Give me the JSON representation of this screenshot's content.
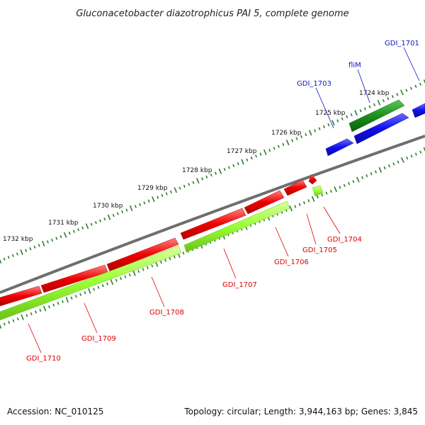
{
  "title": "Gluconacetobacter diazotrophicus PAI 5, complete genome",
  "footer": {
    "accession": "Accession: NC_010125",
    "summary": "Topology: circular; Length: 3,944,163 bp; Genes: 3,845"
  },
  "colors": {
    "backbone": "#808080",
    "ticks": "#2e7d2e",
    "forward_gene": "#1a9a1a",
    "forward_protein": "#1010ee",
    "reverse_gene": "#f00000",
    "reverse_protein": "#99ff33",
    "forward_label": "#1010cc",
    "reverse_label": "#dd0000"
  },
  "scale": {
    "unit": "kbp",
    "labels": [
      "1724 kbp",
      "1725 kbp",
      "1726 kbp",
      "1727 kbp",
      "1728 kbp",
      "1729 kbp",
      "1730 kbp",
      "1731 kbp",
      "1732 kbp"
    ]
  },
  "genes": [
    {
      "name": "GDI_1701",
      "strand": "forward"
    },
    {
      "name": "fliM",
      "strand": "forward"
    },
    {
      "name": "GDI_1703",
      "strand": "forward"
    },
    {
      "name": "GDI_1704",
      "strand": "reverse"
    },
    {
      "name": "GDI_1705",
      "strand": "reverse"
    },
    {
      "name": "GDI_1706",
      "strand": "reverse"
    },
    {
      "name": "GDI_1707",
      "strand": "reverse"
    },
    {
      "name": "GDI_1708",
      "strand": "reverse"
    },
    {
      "name": "GDI_1709",
      "strand": "reverse"
    },
    {
      "name": "GDI_1710",
      "strand": "reverse"
    }
  ]
}
